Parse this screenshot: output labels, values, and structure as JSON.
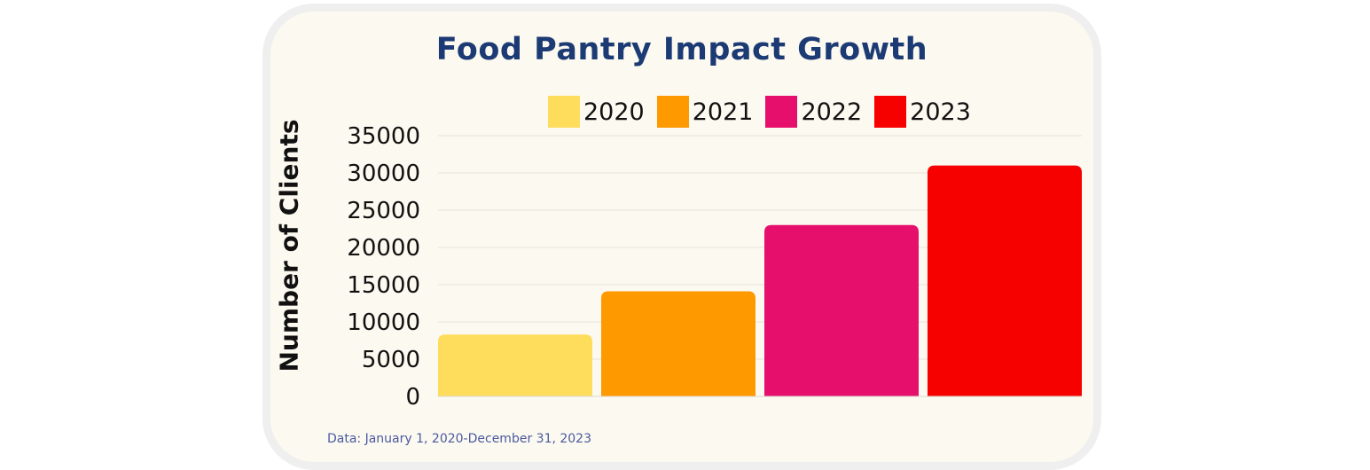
{
  "chart_data": {
    "type": "bar",
    "title": "Food Pantry Impact Growth",
    "categories": [
      "2020",
      "2021",
      "2022",
      "2023"
    ],
    "values": [
      8300,
      14100,
      23000,
      31000
    ],
    "colors": [
      "#ffdd5c",
      "#ff9900",
      "#e60f6b",
      "#f70000"
    ],
    "xlabel": "",
    "ylabel": "Number of Clients",
    "ylim": [
      0,
      35000
    ],
    "yticks": [
      0,
      5000,
      10000,
      15000,
      20000,
      25000,
      30000,
      35000
    ],
    "grid": true,
    "legend_position": "top"
  },
  "footnote": "Data: January 1, 2020-December 31, 2023",
  "colors": {
    "title": "#1c3a73",
    "footnote": "#4a5aa0",
    "card_background": "#fcf9f0",
    "card_border": "#efefef",
    "gridline": "#e6e4dc",
    "axis": "#d8d6ce"
  }
}
